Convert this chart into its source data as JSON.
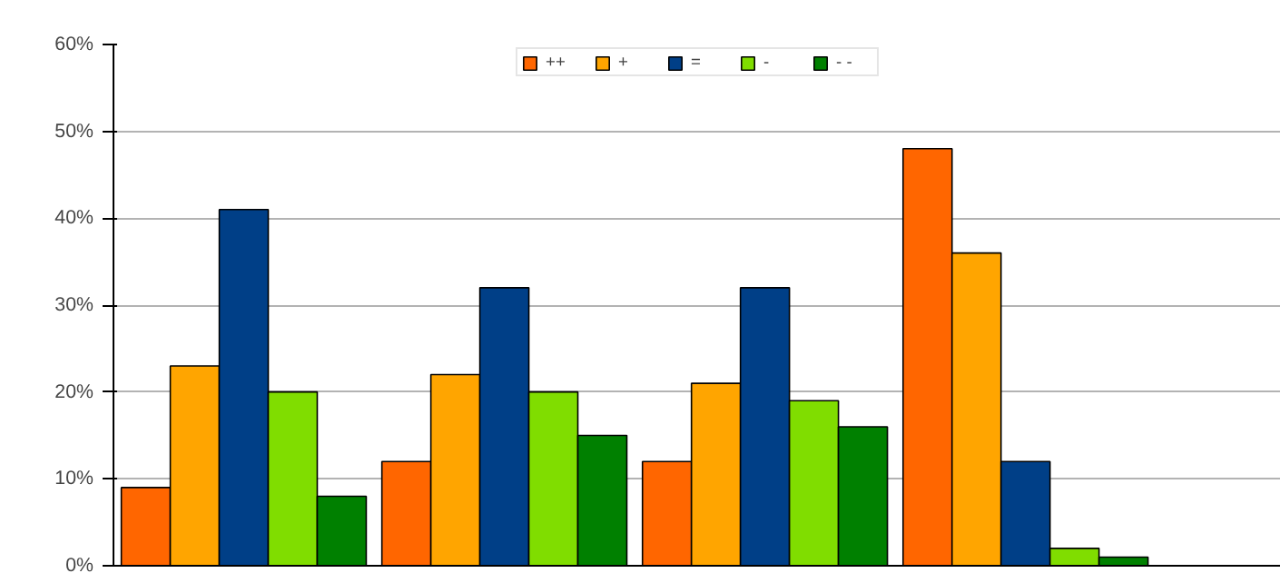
{
  "chart_data": {
    "type": "bar",
    "categories": [
      null,
      null,
      null,
      null
    ],
    "series": [
      {
        "name": "++",
        "color": "#ff6600",
        "values": [
          9,
          12,
          12,
          48
        ]
      },
      {
        "name": "+",
        "color": "#ffa500",
        "values": [
          23,
          22,
          21,
          36
        ]
      },
      {
        "name": "=",
        "color": "#003f87",
        "values": [
          41,
          32,
          32,
          12
        ]
      },
      {
        "name": "-",
        "color": "#80dd00",
        "values": [
          20,
          20,
          19,
          2
        ]
      },
      {
        "name": "- -",
        "color": "#008000",
        "values": [
          8,
          15,
          16,
          1
        ]
      }
    ],
    "ylim": [
      0,
      60
    ],
    "yticks": [
      {
        "value": 0,
        "label": "0%"
      },
      {
        "value": 10,
        "label": "10%"
      },
      {
        "value": 20,
        "label": "20%"
      },
      {
        "value": 30,
        "label": "30%"
      },
      {
        "value": 40,
        "label": "40%"
      },
      {
        "value": 50,
        "label": "50%"
      },
      {
        "value": 60,
        "label": "60%"
      }
    ],
    "grid": "y",
    "legend": "top"
  }
}
